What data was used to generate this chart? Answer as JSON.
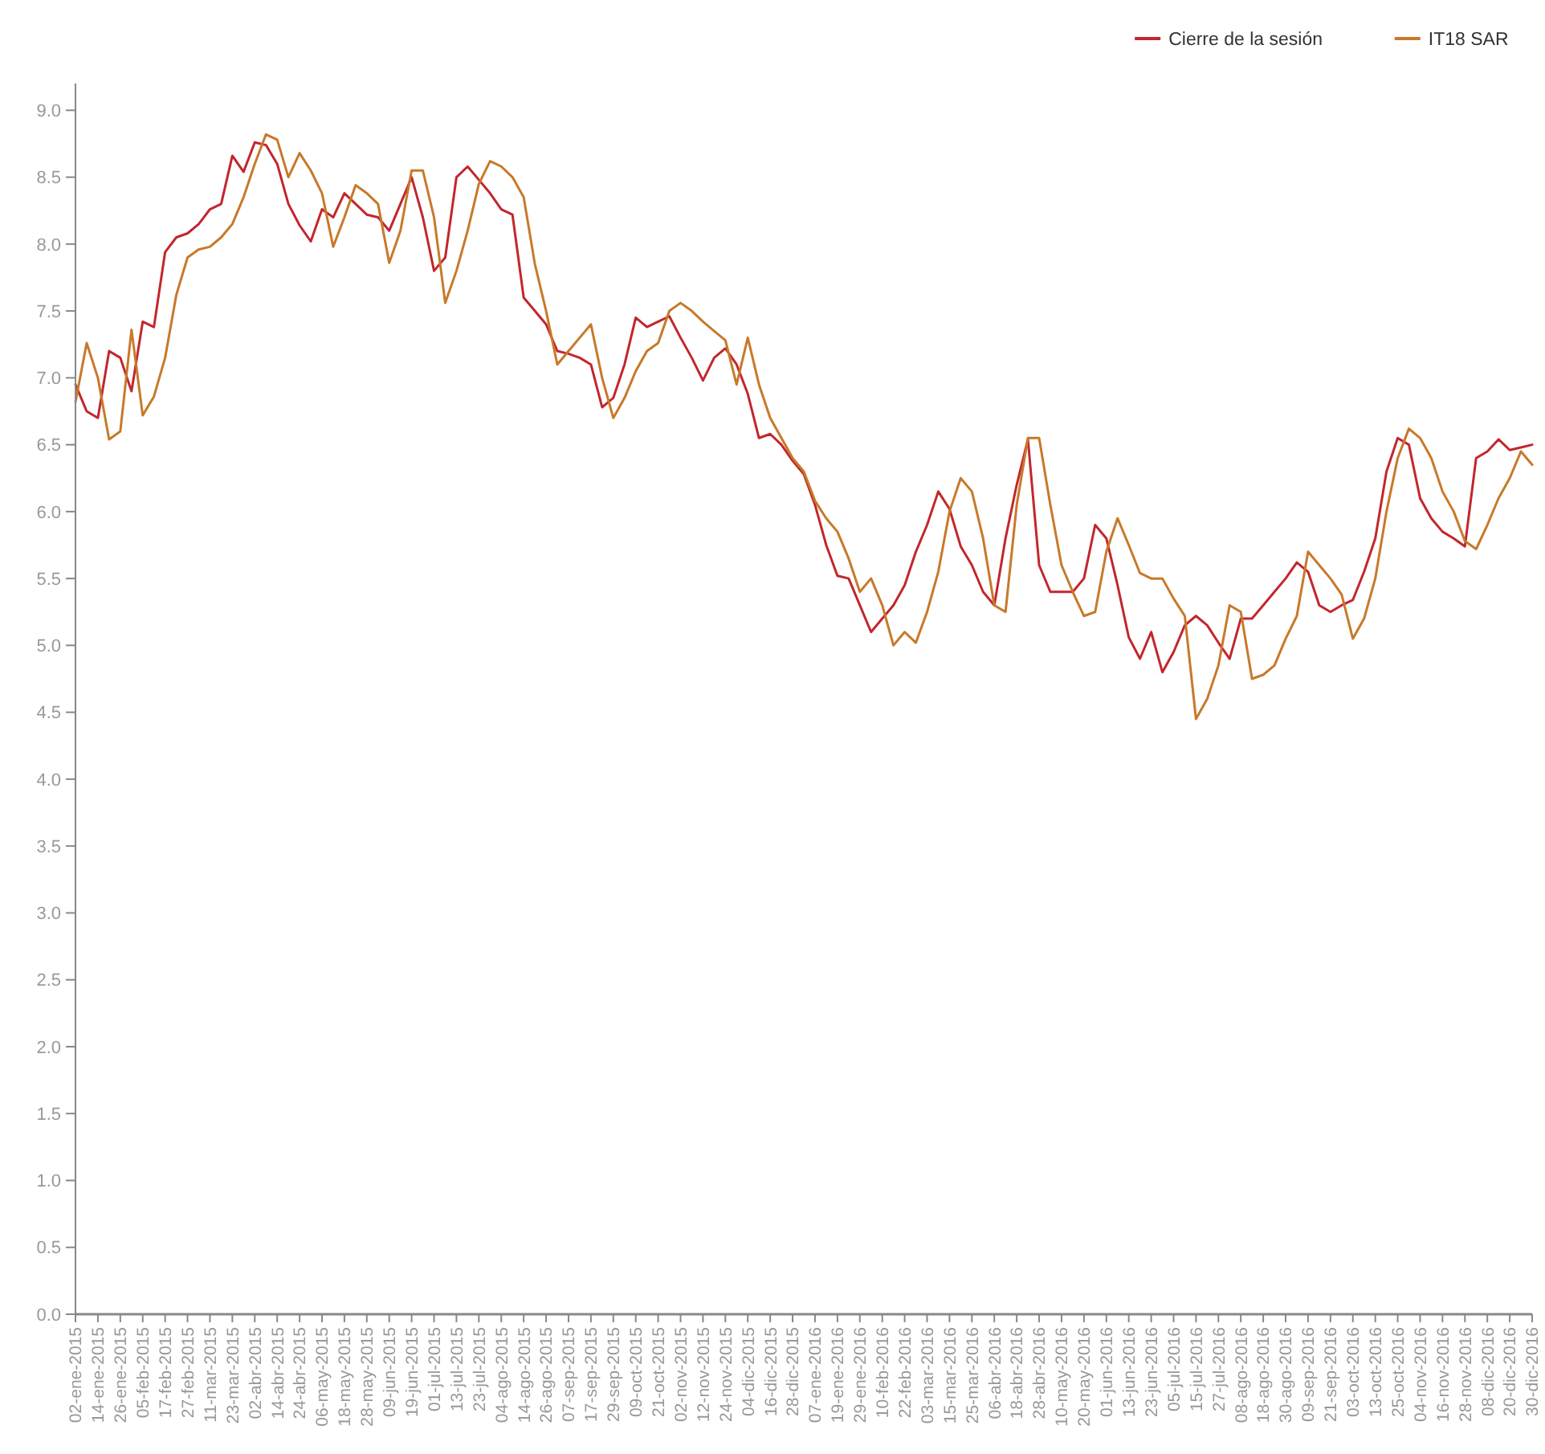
{
  "chart_data": {
    "type": "line",
    "legend": "top right",
    "marker": "none",
    "line_style": "solid",
    "grid": false,
    "categories": [
      "02-ene-2015",
      null,
      "14-ene-2015",
      null,
      "26-ene-2015",
      null,
      "05-feb-2015",
      null,
      "17-feb-2015",
      null,
      "27-feb-2015",
      null,
      "11-mar-2015",
      null,
      "23-mar-2015",
      null,
      "02-abr-2015",
      null,
      "14-abr-2015",
      null,
      "24-abr-2015",
      null,
      "06-may-2015",
      null,
      "18-may-2015",
      null,
      "28-may-2015",
      null,
      "09-jun-2015",
      null,
      "19-jun-2015",
      null,
      "01-jul-2015",
      null,
      "13-jul-2015",
      null,
      "23-jul-2015",
      null,
      "04-ago-2015",
      null,
      "14-ago-2015",
      null,
      "26-ago-2015",
      null,
      "07-sep-2015",
      null,
      "17-sep-2015",
      null,
      "29-sep-2015",
      null,
      "09-oct-2015",
      null,
      "21-oct-2015",
      null,
      "02-nov-2015",
      null,
      "12-nov-2015",
      null,
      "24-nov-2015",
      null,
      "04-dic-2015",
      null,
      "16-dic-2015",
      null,
      "28-dic-2015",
      null,
      "07-ene-2016",
      null,
      "19-ene-2016",
      null,
      "29-ene-2016",
      null,
      "10-feb-2016",
      null,
      "22-feb-2016",
      null,
      "03-mar-2016",
      null,
      "15-mar-2016",
      null,
      "25-mar-2016",
      null,
      "06-abr-2016",
      null,
      "18-abr-2016",
      null,
      "28-abr-2016",
      null,
      "10-may-2016",
      null,
      "20-may-2016",
      null,
      "01-jun-2016",
      null,
      "13-jun-2016",
      null,
      "23-jun-2016",
      null,
      "05-jul-2016",
      null,
      "15-jul-2016",
      null,
      "27-jul-2016",
      null,
      "08-ago-2016",
      null,
      "18-ago-2016",
      null,
      "30-ago-2016",
      null,
      "09-sep-2016",
      null,
      "21-sep-2016",
      null,
      "03-oct-2016",
      null,
      "13-oct-2016",
      null,
      "25-oct-2016",
      null,
      "04-nov-2016",
      null,
      "16-nov-2016",
      null,
      "28-nov-2016",
      null,
      "08-dic-2016",
      null,
      "20-dic-2016",
      null,
      "30-dic-2016"
    ],
    "ylim": [
      0,
      9.2
    ],
    "yticks": [
      {
        "value": 0,
        "label": "0.0"
      },
      0.5,
      {
        "value": 1,
        "label": "1.0"
      },
      1.5,
      {
        "value": 2,
        "label": "2.0"
      },
      2.5,
      {
        "value": 3,
        "label": "3.0"
      },
      3.5,
      {
        "value": 4,
        "label": "4.0"
      },
      4.5,
      {
        "value": 5,
        "label": "5.0"
      },
      5.5,
      {
        "value": 6,
        "label": "6.0"
      },
      6.5,
      {
        "value": 7,
        "label": "7.0"
      },
      7.5,
      {
        "value": 8,
        "label": "8.0"
      },
      8.5,
      {
        "value": 9,
        "label": "9.0"
      }
    ],
    "series": [
      {
        "name": "Cierre de la sesión",
        "color": "#c1272d",
        "values": [
          6.95,
          6.75,
          6.7,
          7.2,
          7.15,
          6.9,
          7.42,
          7.38,
          7.94,
          8.05,
          8.08,
          8.15,
          8.26,
          8.3,
          8.66,
          8.54,
          8.76,
          8.74,
          8.6,
          8.3,
          8.14,
          8.02,
          8.26,
          8.2,
          8.38,
          8.3,
          8.22,
          8.2,
          8.1,
          8.3,
          8.5,
          8.2,
          7.8,
          7.9,
          8.5,
          8.58,
          8.48,
          8.38,
          8.26,
          8.22,
          7.6,
          7.5,
          7.4,
          7.2,
          7.18,
          7.15,
          7.1,
          6.78,
          6.85,
          7.1,
          7.45,
          7.38,
          7.42,
          7.46,
          7.3,
          7.15,
          6.98,
          7.15,
          7.22,
          7.1,
          6.88,
          6.55,
          6.58,
          6.5,
          6.38,
          6.28,
          6.05,
          5.75,
          5.52,
          5.5,
          5.3,
          5.1,
          5.2,
          5.3,
          5.45,
          5.7,
          5.9,
          6.15,
          6.02,
          5.74,
          5.6,
          5.4,
          5.3,
          5.8,
          6.2,
          6.54,
          5.6,
          5.4,
          5.4,
          5.4,
          5.5,
          5.9,
          5.8,
          5.45,
          5.06,
          4.9,
          5.1,
          4.8,
          4.95,
          5.15,
          5.22,
          5.15,
          5.02,
          4.9,
          5.2,
          5.2,
          5.3,
          5.4,
          5.5,
          5.62,
          5.55,
          5.3,
          5.25,
          5.3,
          5.34,
          5.55,
          5.8,
          6.3,
          6.55,
          6.5,
          6.1,
          5.95,
          5.85,
          5.8,
          5.74,
          6.4,
          6.45,
          6.54,
          6.46,
          6.48,
          6.5
        ]
      },
      {
        "name": "IT18 SAR",
        "color": "#c8792a",
        "values": [
          6.82,
          7.26,
          7.0,
          6.54,
          6.6,
          7.36,
          6.72,
          6.86,
          7.15,
          7.62,
          7.9,
          7.96,
          7.98,
          8.05,
          8.15,
          8.35,
          8.6,
          8.82,
          8.78,
          8.5,
          8.68,
          8.55,
          8.38,
          7.98,
          8.2,
          8.44,
          8.38,
          8.3,
          7.86,
          8.1,
          8.55,
          8.55,
          8.2,
          7.56,
          7.8,
          8.1,
          8.45,
          8.62,
          8.58,
          8.5,
          8.35,
          7.85,
          7.5,
          7.1,
          7.2,
          7.3,
          7.4,
          7.0,
          6.7,
          6.85,
          7.05,
          7.2,
          7.26,
          7.5,
          7.56,
          7.5,
          7.42,
          7.35,
          7.28,
          6.95,
          7.3,
          6.95,
          6.7,
          6.55,
          6.4,
          6.3,
          6.08,
          5.95,
          5.85,
          5.65,
          5.4,
          5.5,
          5.3,
          5.0,
          5.1,
          5.02,
          5.25,
          5.55,
          6.0,
          6.25,
          6.15,
          5.8,
          5.3,
          5.25,
          6.05,
          6.55,
          6.55,
          6.05,
          5.6,
          5.4,
          5.22,
          5.25,
          5.7,
          5.95,
          5.75,
          5.54,
          5.5,
          5.5,
          5.35,
          5.22,
          4.45,
          4.6,
          4.85,
          5.3,
          5.25,
          4.75,
          4.78,
          4.85,
          5.05,
          5.22,
          5.7,
          5.6,
          5.5,
          5.38,
          5.05,
          5.2,
          5.5,
          6.0,
          6.4,
          6.62,
          6.55,
          6.4,
          6.15,
          6.0,
          5.78,
          5.72,
          5.9,
          6.1,
          6.25,
          6.45,
          6.35
        ]
      }
    ]
  }
}
